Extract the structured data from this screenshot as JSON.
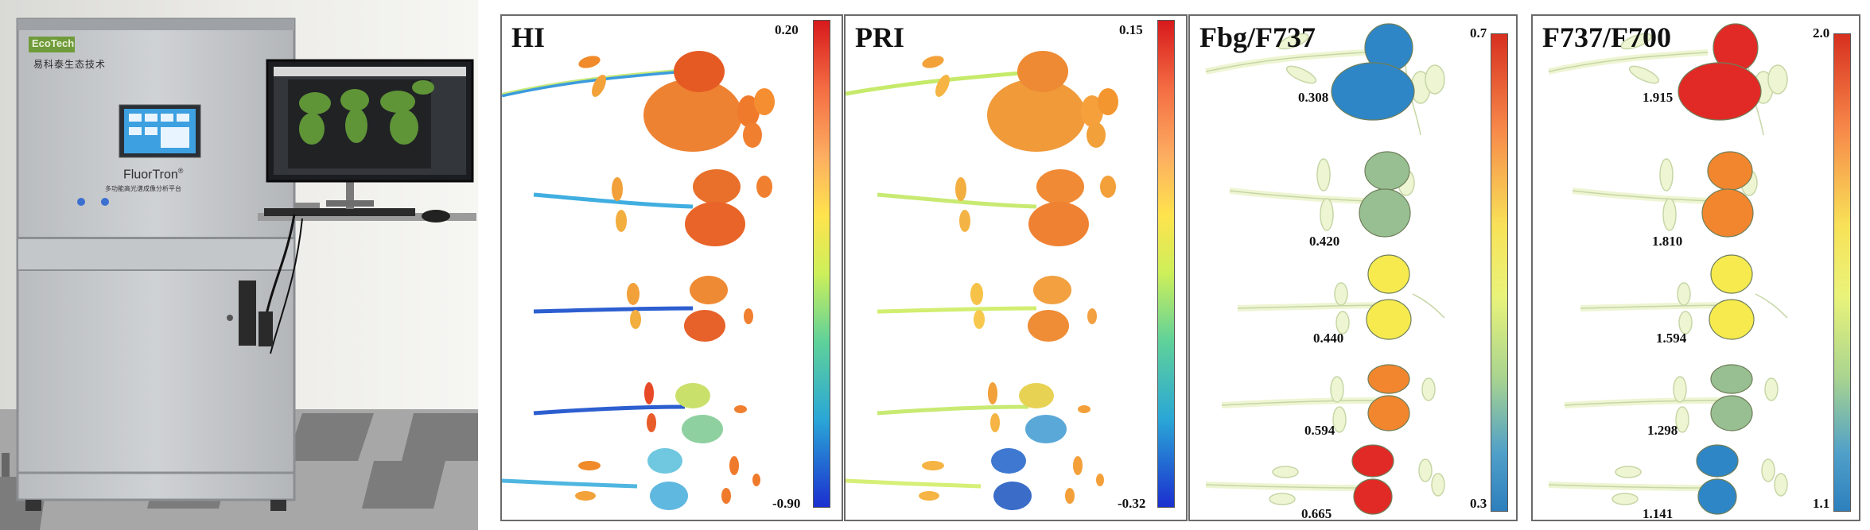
{
  "instrument": {
    "brand_badge": "EcoTech",
    "company_cn": "易科泰生态技术",
    "product_name": "FluorTron",
    "product_mark": "®",
    "product_subtitle_cn": "多功能高光谱成像分析平台"
  },
  "panels": [
    {
      "id": "hi",
      "title": "HI",
      "scale_max": "0.20",
      "scale_min": "-0.90",
      "colormap": "jet"
    },
    {
      "id": "pri",
      "title": "PRI",
      "scale_max": "0.15",
      "scale_min": "-0.32",
      "colormap": "jet"
    },
    {
      "id": "fbg",
      "title": "Fbg/F737",
      "scale_max": "0.7",
      "scale_min": "0.3",
      "colormap": "diverging",
      "plant_values": [
        "0.308",
        "0.420",
        "0.440",
        "0.594",
        "0.665"
      ],
      "plant_colors": [
        "#2f86c6",
        "#98bf92",
        "#f6ea4e",
        "#f2862e",
        "#e12a25"
      ]
    },
    {
      "id": "f737",
      "title": "F737/F700",
      "scale_max": "2.0",
      "scale_min": "1.1",
      "colormap": "diverging",
      "plant_values": [
        "1.915",
        "1.810",
        "1.594",
        "1.298",
        "1.141"
      ],
      "plant_colors": [
        "#e12a25",
        "#f2862e",
        "#f6ea4e",
        "#98bf92",
        "#2f86c6"
      ]
    }
  ]
}
